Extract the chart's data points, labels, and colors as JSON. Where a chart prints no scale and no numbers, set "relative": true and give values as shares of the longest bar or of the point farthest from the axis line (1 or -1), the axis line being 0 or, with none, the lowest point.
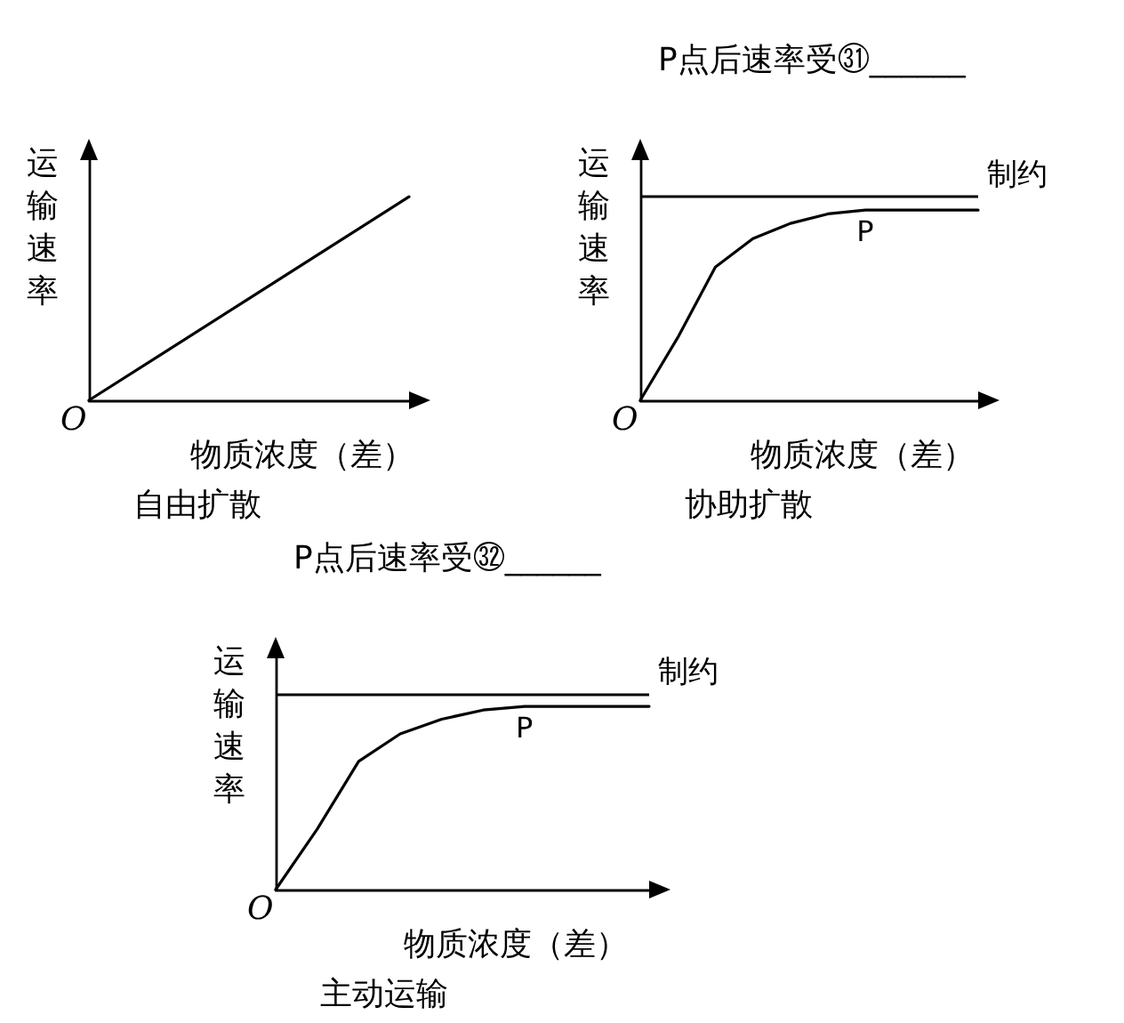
{
  "chart_data": [
    {
      "type": "line",
      "title": "自由扩散",
      "xlabel": "物质浓度（差）",
      "ylabel": "运输速率",
      "relative": true,
      "grid": false,
      "marker": "none",
      "line_style": "solid",
      "categories": [
        null,
        null,
        null,
        null,
        null
      ],
      "series": [
        {
          "color": "#000000",
          "values": [
            0,
            0.25,
            0.5,
            0.75,
            1
          ]
        }
      ],
      "annotations": [
        "O"
      ]
    },
    {
      "type": "line",
      "title": "协助扩散",
      "xlabel": "物质浓度（差）",
      "ylabel": "运输速率",
      "relative": true,
      "grid": false,
      "marker": "none",
      "line_style": "solid",
      "categories": [
        null,
        null,
        null,
        null,
        null,
        null,
        null,
        null,
        null,
        null
      ],
      "series": [
        {
          "color": "#000000",
          "values": [
            0,
            0.33,
            0.7,
            0.85,
            0.93,
            0.98,
            1,
            1,
            1,
            1
          ]
        }
      ],
      "ref_lines": [
        {
          "axis": "y",
          "value": 1.07,
          "label": "制约",
          "color": "#000000"
        }
      ],
      "annotations": [
        "O",
        "P点后速率受㉛______",
        {
          "text": "P",
          "y": 1
        }
      ]
    },
    {
      "type": "line",
      "title": "主动运输",
      "xlabel": "物质浓度（差）",
      "ylabel": "运输速率",
      "relative": true,
      "grid": false,
      "marker": "none",
      "line_style": "solid",
      "categories": [
        null,
        null,
        null,
        null,
        null,
        null,
        null,
        null,
        null,
        null
      ],
      "series": [
        {
          "color": "#000000",
          "values": [
            0,
            0.33,
            0.7,
            0.85,
            0.93,
            0.98,
            1,
            1,
            1,
            1
          ]
        }
      ],
      "ref_lines": [
        {
          "axis": "y",
          "value": 1.07,
          "label": "制约",
          "color": "#000000"
        }
      ],
      "annotations": [
        "O",
        "P点后速率受㉜______",
        {
          "text": "P",
          "y": 1
        }
      ]
    }
  ]
}
